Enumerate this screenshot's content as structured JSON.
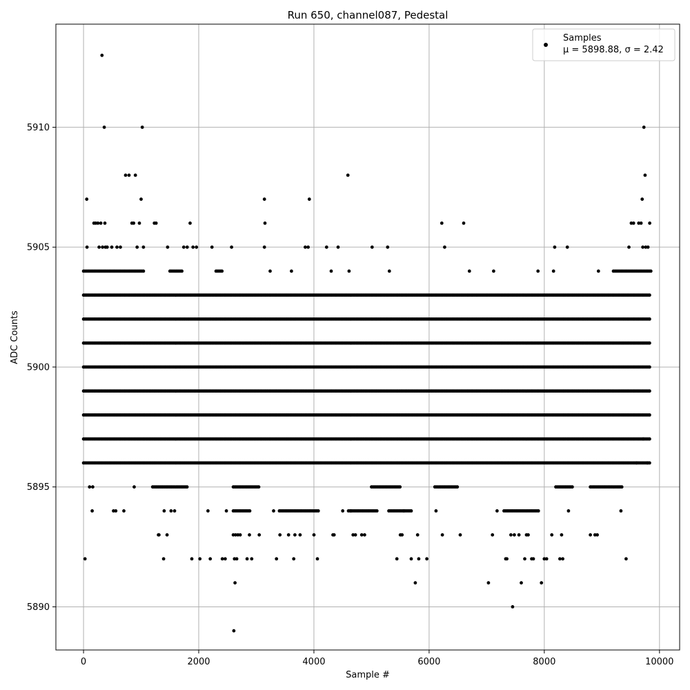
{
  "chart_data": {
    "type": "scatter",
    "title": "Run 650, channel087, Pedestal",
    "xlabel": "Sample #",
    "ylabel": "ADC Counts",
    "xlim": [
      -480,
      10350
    ],
    "ylim": [
      5888.2,
      5914.3
    ],
    "xticks": [
      0,
      2000,
      4000,
      6000,
      8000,
      10000
    ],
    "yticks": [
      5890,
      5895,
      5900,
      5905,
      5910
    ],
    "grid": true,
    "legend_position": "top-right",
    "marker_color": "#000000",
    "series": [
      {
        "name": "Samples",
        "stats_label": "μ = 5898.88, σ = 2.42",
        "mean": 5898.88,
        "sigma": 2.42,
        "n_samples": 9850,
        "bands": [
          {
            "y": 5896,
            "segments": [
              [
                0,
                9850
              ]
            ]
          },
          {
            "y": 5897,
            "segments": [
              [
                0,
                9850
              ]
            ]
          },
          {
            "y": 5898,
            "segments": [
              [
                0,
                9850
              ]
            ]
          },
          {
            "y": 5899,
            "segments": [
              [
                0,
                9850
              ]
            ]
          },
          {
            "y": 5900,
            "segments": [
              [
                0,
                9850
              ]
            ]
          },
          {
            "y": 5901,
            "segments": [
              [
                0,
                9850
              ]
            ]
          },
          {
            "y": 5902,
            "segments": [
              [
                0,
                9850
              ]
            ]
          },
          {
            "y": 5903,
            "segments": [
              [
                0,
                9850
              ]
            ]
          },
          {
            "y": 5904,
            "segments": [
              [
                0,
                1050
              ],
              [
                1500,
                1720
              ],
              [
                2300,
                2420
              ],
              [
                9200,
                9850
              ]
            ]
          },
          {
            "y": 5895,
            "segments": [
              [
                1200,
                1800
              ],
              [
                2600,
                3050
              ],
              [
                5000,
                5500
              ],
              [
                6100,
                6500
              ],
              [
                8200,
                8500
              ],
              [
                8800,
                9350
              ]
            ]
          },
          {
            "y": 5894,
            "segments": [
              [
                2600,
                2900
              ],
              [
                3400,
                4100
              ],
              [
                4600,
                5100
              ],
              [
                5300,
                5700
              ],
              [
                7300,
                7900
              ]
            ]
          }
        ],
        "points": [
          [
            25,
            5892
          ],
          [
            55,
            5907
          ],
          [
            60,
            5905
          ],
          [
            105,
            5895
          ],
          [
            150,
            5894
          ],
          [
            160,
            5895
          ],
          [
            180,
            5906
          ],
          [
            210,
            5906
          ],
          [
            250,
            5906
          ],
          [
            300,
            5906
          ],
          [
            320,
            5913
          ],
          [
            360,
            5910
          ],
          [
            370,
            5906
          ],
          [
            380,
            5905
          ],
          [
            270,
            5905
          ],
          [
            330,
            5905
          ],
          [
            410,
            5905
          ],
          [
            490,
            5905
          ],
          [
            520,
            5894
          ],
          [
            560,
            5894
          ],
          [
            580,
            5905
          ],
          [
            640,
            5905
          ],
          [
            700,
            5894
          ],
          [
            730,
            5908
          ],
          [
            790,
            5908
          ],
          [
            840,
            5906
          ],
          [
            870,
            5906
          ],
          [
            900,
            5908
          ],
          [
            930,
            5905
          ],
          [
            970,
            5906
          ],
          [
            1000,
            5907
          ],
          [
            1020,
            5910
          ],
          [
            1040,
            5905
          ],
          [
            880,
            5895
          ],
          [
            1230,
            5906
          ],
          [
            1260,
            5906
          ],
          [
            1300,
            5893
          ],
          [
            1310,
            5893
          ],
          [
            1390,
            5892
          ],
          [
            1450,
            5893
          ],
          [
            1460,
            5905
          ],
          [
            1520,
            5894
          ],
          [
            1400,
            5894
          ],
          [
            1580,
            5894
          ],
          [
            1740,
            5905
          ],
          [
            1800,
            5905
          ],
          [
            1850,
            5906
          ],
          [
            1900,
            5905
          ],
          [
            1960,
            5905
          ],
          [
            1880,
            5892
          ],
          [
            2020,
            5892
          ],
          [
            2200,
            5892
          ],
          [
            2230,
            5905
          ],
          [
            2160,
            5894
          ],
          [
            2410,
            5892
          ],
          [
            2460,
            5892
          ],
          [
            2480,
            5894
          ],
          [
            2570,
            5905
          ],
          [
            2600,
            5893
          ],
          [
            2620,
            5892
          ],
          [
            2630,
            5891
          ],
          [
            2640,
            5893
          ],
          [
            2660,
            5892
          ],
          [
            2610,
            5889
          ],
          [
            2680,
            5893
          ],
          [
            2720,
            5893
          ],
          [
            2840,
            5892
          ],
          [
            2880,
            5893
          ],
          [
            2920,
            5892
          ],
          [
            3050,
            5893
          ],
          [
            3140,
            5907
          ],
          [
            3150,
            5906
          ],
          [
            3140,
            5905
          ],
          [
            3240,
            5904
          ],
          [
            3300,
            5894
          ],
          [
            3350,
            5892
          ],
          [
            3410,
            5893
          ],
          [
            3560,
            5893
          ],
          [
            3610,
            5904
          ],
          [
            3650,
            5892
          ],
          [
            3670,
            5893
          ],
          [
            3760,
            5893
          ],
          [
            3850,
            5905
          ],
          [
            3900,
            5905
          ],
          [
            3920,
            5907
          ],
          [
            4000,
            5893
          ],
          [
            4060,
            5892
          ],
          [
            4220,
            5905
          ],
          [
            4300,
            5904
          ],
          [
            4330,
            5893
          ],
          [
            4350,
            5893
          ],
          [
            4420,
            5905
          ],
          [
            4500,
            5894
          ],
          [
            4590,
            5908
          ],
          [
            4610,
            5904
          ],
          [
            4640,
            5894
          ],
          [
            4680,
            5893
          ],
          [
            4720,
            5893
          ],
          [
            4830,
            5893
          ],
          [
            4880,
            5893
          ],
          [
            5010,
            5905
          ],
          [
            5280,
            5905
          ],
          [
            5310,
            5904
          ],
          [
            5440,
            5892
          ],
          [
            5500,
            5893
          ],
          [
            5530,
            5893
          ],
          [
            5560,
            5894
          ],
          [
            5690,
            5892
          ],
          [
            5760,
            5891
          ],
          [
            5800,
            5893
          ],
          [
            5820,
            5892
          ],
          [
            5960,
            5892
          ],
          [
            6120,
            5894
          ],
          [
            6220,
            5906
          ],
          [
            6230,
            5893
          ],
          [
            6270,
            5905
          ],
          [
            6540,
            5893
          ],
          [
            6600,
            5906
          ],
          [
            6700,
            5904
          ],
          [
            7030,
            5891
          ],
          [
            7100,
            5893
          ],
          [
            7120,
            5904
          ],
          [
            7180,
            5894
          ],
          [
            7330,
            5892
          ],
          [
            7350,
            5892
          ],
          [
            7420,
            5893
          ],
          [
            7450,
            5890
          ],
          [
            7480,
            5893
          ],
          [
            7560,
            5893
          ],
          [
            7600,
            5891
          ],
          [
            7660,
            5892
          ],
          [
            7690,
            5893
          ],
          [
            7720,
            5893
          ],
          [
            7780,
            5892
          ],
          [
            7810,
            5892
          ],
          [
            7890,
            5904
          ],
          [
            7950,
            5891
          ],
          [
            8000,
            5892
          ],
          [
            8040,
            5892
          ],
          [
            8130,
            5893
          ],
          [
            8160,
            5904
          ],
          [
            8180,
            5905
          ],
          [
            8270,
            5892
          ],
          [
            8300,
            5893
          ],
          [
            8320,
            5892
          ],
          [
            8400,
            5905
          ],
          [
            8420,
            5894
          ],
          [
            8800,
            5893
          ],
          [
            8880,
            5893
          ],
          [
            8920,
            5893
          ],
          [
            8940,
            5904
          ],
          [
            9330,
            5894
          ],
          [
            9420,
            5892
          ],
          [
            9470,
            5905
          ],
          [
            9510,
            5906
          ],
          [
            9550,
            5906
          ],
          [
            9600,
            5896
          ],
          [
            9640,
            5906
          ],
          [
            9680,
            5906
          ],
          [
            9700,
            5907
          ],
          [
            9720,
            5897
          ],
          [
            9730,
            5910
          ],
          [
            9750,
            5908
          ],
          [
            9790,
            5896
          ],
          [
            9830,
            5906
          ],
          [
            9710,
            5905
          ],
          [
            9760,
            5905
          ],
          [
            9800,
            5905
          ]
        ]
      }
    ]
  }
}
